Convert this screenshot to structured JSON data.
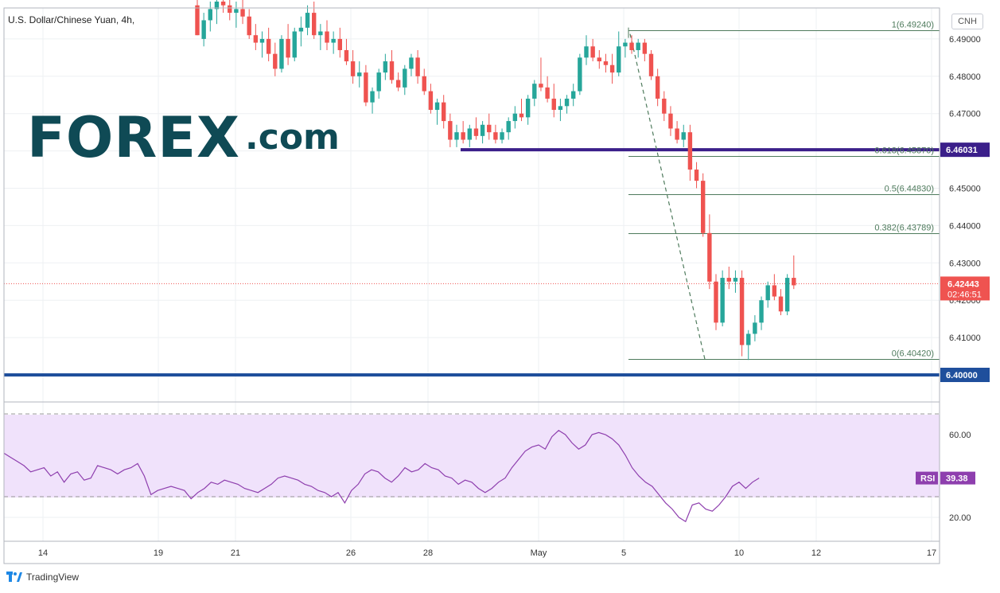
{
  "title": "U.S. Dollar/Chinese Yuan, 4h,",
  "currency": "CNH",
  "watermark": {
    "brand": "FOREX",
    "suffix": ".com"
  },
  "footer": {
    "brand": "TradingView"
  },
  "colors": {
    "up": "#26a69a",
    "down": "#ef5350",
    "level_purple": "#3b1f8a",
    "level_blue": "#1f4f9c",
    "fib": "#4f7b5d",
    "rsi": "#8e3fae"
  },
  "chart_data": [
    {
      "type": "candlestick",
      "title": "U.S. Dollar/Chinese Yuan, 4h,",
      "x_ticks": [
        "14",
        "19",
        "21",
        "26",
        "28",
        "May",
        "5",
        "10",
        "12",
        "17"
      ],
      "y_ticks": [
        "6.40000",
        "6.41000",
        "6.42000",
        "6.43000",
        "6.44000",
        "6.45000",
        "6.46000",
        "6.47000",
        "6.48000",
        "6.49000"
      ],
      "ylim": [
        6.3924,
        6.4988
      ],
      "grid": true,
      "horizontal_levels": [
        {
          "label": "6.46031",
          "value": 6.46031
        },
        {
          "label": "6.40000",
          "value": 6.4
        }
      ],
      "fibonacci": [
        {
          "label": "1(6.49240)",
          "value": 6.4924
        },
        {
          "label": "0.618(6.45870)",
          "value": 6.4587
        },
        {
          "label": "0.5(6.44830)",
          "value": 6.4483
        },
        {
          "label": "0.382(6.43789)",
          "value": 6.43789
        },
        {
          "label": "0(6.40420)",
          "value": 6.4042
        }
      ],
      "last_price": {
        "value": 6.42443,
        "label": "6.42443",
        "countdown": "02:46:51"
      },
      "candles": [
        [
          6.499,
          6.502,
          6.491,
          6.491
        ],
        [
          6.49,
          6.497,
          6.488,
          6.495
        ],
        [
          6.495,
          6.5,
          6.492,
          6.498
        ],
        [
          6.498,
          6.502,
          6.494,
          6.5
        ],
        [
          6.5,
          6.503,
          6.497,
          6.499
        ],
        [
          6.499,
          6.502,
          6.495,
          6.497
        ],
        [
          6.497,
          6.5,
          6.493,
          6.498
        ],
        [
          6.498,
          6.501,
          6.494,
          6.496
        ],
        [
          6.496,
          6.498,
          6.49,
          6.491
        ],
        [
          6.491,
          6.494,
          6.487,
          6.489
        ],
        [
          6.489,
          6.492,
          6.485,
          6.49
        ],
        [
          6.49,
          6.493,
          6.484,
          6.486
        ],
        [
          6.486,
          6.489,
          6.48,
          6.482
        ],
        [
          6.482,
          6.491,
          6.481,
          6.49
        ],
        [
          6.49,
          6.494,
          6.483,
          6.485
        ],
        [
          6.485,
          6.493,
          6.484,
          6.492
        ],
        [
          6.492,
          6.496,
          6.488,
          6.493
        ],
        [
          6.493,
          6.499,
          6.491,
          6.497
        ],
        [
          6.497,
          6.5,
          6.49,
          6.491
        ],
        [
          6.491,
          6.494,
          6.487,
          6.492
        ],
        [
          6.492,
          6.495,
          6.487,
          6.489
        ],
        [
          6.489,
          6.492,
          6.486,
          6.49
        ],
        [
          6.49,
          6.493,
          6.485,
          6.487
        ],
        [
          6.487,
          6.49,
          6.483,
          6.484
        ],
        [
          6.484,
          6.487,
          6.478,
          6.48
        ],
        [
          6.48,
          6.484,
          6.477,
          6.481
        ],
        [
          6.481,
          6.483,
          6.472,
          6.473
        ],
        [
          6.473,
          6.477,
          6.47,
          6.476
        ],
        [
          6.476,
          6.482,
          6.474,
          6.481
        ],
        [
          6.481,
          6.486,
          6.479,
          6.484
        ],
        [
          6.484,
          6.487,
          6.478,
          6.479
        ],
        [
          6.479,
          6.481,
          6.476,
          6.477
        ],
        [
          6.477,
          6.483,
          6.475,
          6.482
        ],
        [
          6.482,
          6.486,
          6.48,
          6.485
        ],
        [
          6.485,
          6.487,
          6.478,
          6.48
        ],
        [
          6.48,
          6.482,
          6.475,
          6.476
        ],
        [
          6.476,
          6.478,
          6.47,
          6.471
        ],
        [
          6.471,
          6.474,
          6.467,
          6.473
        ],
        [
          6.473,
          6.475,
          6.466,
          6.468
        ],
        [
          6.468,
          6.47,
          6.461,
          6.463
        ],
        [
          6.463,
          6.467,
          6.461,
          6.465
        ],
        [
          6.465,
          6.468,
          6.462,
          6.463
        ],
        [
          6.463,
          6.467,
          6.461,
          6.466
        ],
        [
          6.466,
          6.469,
          6.463,
          6.464
        ],
        [
          6.464,
          6.468,
          6.462,
          6.467
        ],
        [
          6.467,
          6.47,
          6.463,
          6.465
        ],
        [
          6.465,
          6.467,
          6.462,
          6.463
        ],
        [
          6.463,
          6.466,
          6.462,
          6.465
        ],
        [
          6.465,
          6.469,
          6.463,
          6.468
        ],
        [
          6.468,
          6.472,
          6.466,
          6.47
        ],
        [
          6.47,
          6.474,
          6.468,
          6.469
        ],
        [
          6.469,
          6.475,
          6.467,
          6.474
        ],
        [
          6.474,
          6.479,
          6.472,
          6.478
        ],
        [
          6.478,
          6.485,
          6.476,
          6.477
        ],
        [
          6.477,
          6.48,
          6.473,
          6.474
        ],
        [
          6.474,
          6.478,
          6.469,
          6.471
        ],
        [
          6.471,
          6.474,
          6.468,
          6.472
        ],
        [
          6.472,
          6.475,
          6.47,
          6.474
        ],
        [
          6.474,
          6.478,
          6.472,
          6.476
        ],
        [
          6.476,
          6.486,
          6.475,
          6.485
        ],
        [
          6.485,
          6.491,
          6.483,
          6.488
        ],
        [
          6.488,
          6.49,
          6.484,
          6.485
        ],
        [
          6.485,
          6.487,
          6.482,
          6.484
        ],
        [
          6.484,
          6.486,
          6.481,
          6.483
        ],
        [
          6.483,
          6.486,
          6.478,
          6.481
        ],
        [
          6.481,
          6.492,
          6.48,
          6.488
        ],
        [
          6.488,
          6.49,
          6.485,
          6.489
        ],
        [
          6.489,
          6.491,
          6.486,
          6.487
        ],
        [
          6.487,
          6.49,
          6.485,
          6.489
        ],
        [
          6.489,
          6.49,
          6.484,
          6.486
        ],
        [
          6.486,
          6.487,
          6.479,
          6.48
        ],
        [
          6.48,
          6.482,
          6.472,
          6.474
        ],
        [
          6.474,
          6.476,
          6.468,
          6.47
        ],
        [
          6.47,
          6.472,
          6.464,
          6.466
        ],
        [
          6.466,
          6.468,
          6.462,
          6.463
        ],
        [
          6.463,
          6.467,
          6.461,
          6.465
        ],
        [
          6.465,
          6.467,
          6.452,
          6.455
        ],
        [
          6.455,
          6.457,
          6.45,
          6.452
        ],
        [
          6.452,
          6.454,
          6.437,
          6.438
        ],
        [
          6.438,
          6.443,
          6.423,
          6.425
        ],
        [
          6.425,
          6.427,
          6.412,
          6.414
        ],
        [
          6.414,
          6.428,
          6.413,
          6.426
        ],
        [
          6.426,
          6.429,
          6.423,
          6.425
        ],
        [
          6.425,
          6.428,
          6.422,
          6.426
        ],
        [
          6.426,
          6.428,
          6.405,
          6.408
        ],
        [
          6.408,
          6.412,
          6.404,
          6.411
        ],
        [
          6.411,
          6.416,
          6.409,
          6.414
        ],
        [
          6.414,
          6.421,
          6.412,
          6.42
        ],
        [
          6.42,
          6.425,
          6.418,
          6.424
        ],
        [
          6.424,
          6.427,
          6.42,
          6.421
        ],
        [
          6.421,
          6.423,
          6.416,
          6.417
        ],
        [
          6.417,
          6.427,
          6.416,
          6.426
        ],
        [
          6.426,
          6.432,
          6.423,
          6.424
        ]
      ]
    },
    {
      "type": "line",
      "series_label": "RSI",
      "last_value_label": "39.38",
      "y_ticks": [
        "20.00",
        "40.00",
        "60.00"
      ],
      "ylim": [
        13,
        75
      ],
      "bands": [
        30,
        70
      ],
      "values": [
        51,
        49,
        47,
        45,
        42,
        43,
        44,
        40,
        42,
        37,
        41,
        42,
        38,
        39,
        45,
        44,
        43,
        41,
        43,
        44,
        46,
        40,
        31,
        33,
        34,
        35,
        34,
        33,
        29,
        32,
        34,
        37,
        36,
        38,
        37,
        36,
        34,
        33,
        32,
        34,
        36,
        39,
        40,
        39,
        38,
        36,
        35,
        33,
        32,
        30,
        32,
        27,
        33,
        36,
        41,
        43,
        42,
        39,
        37,
        40,
        44,
        42,
        43,
        46,
        44,
        43,
        40,
        39,
        36,
        38,
        37,
        34,
        32,
        34,
        37,
        39,
        44,
        48,
        52,
        54,
        55,
        53,
        59,
        62,
        60,
        56,
        53,
        55,
        60,
        61,
        60,
        58,
        55,
        50,
        44,
        40,
        37,
        35,
        31,
        27,
        24,
        20,
        18,
        26,
        27,
        24,
        23,
        26,
        30,
        35,
        37,
        34,
        37,
        39
      ]
    }
  ]
}
